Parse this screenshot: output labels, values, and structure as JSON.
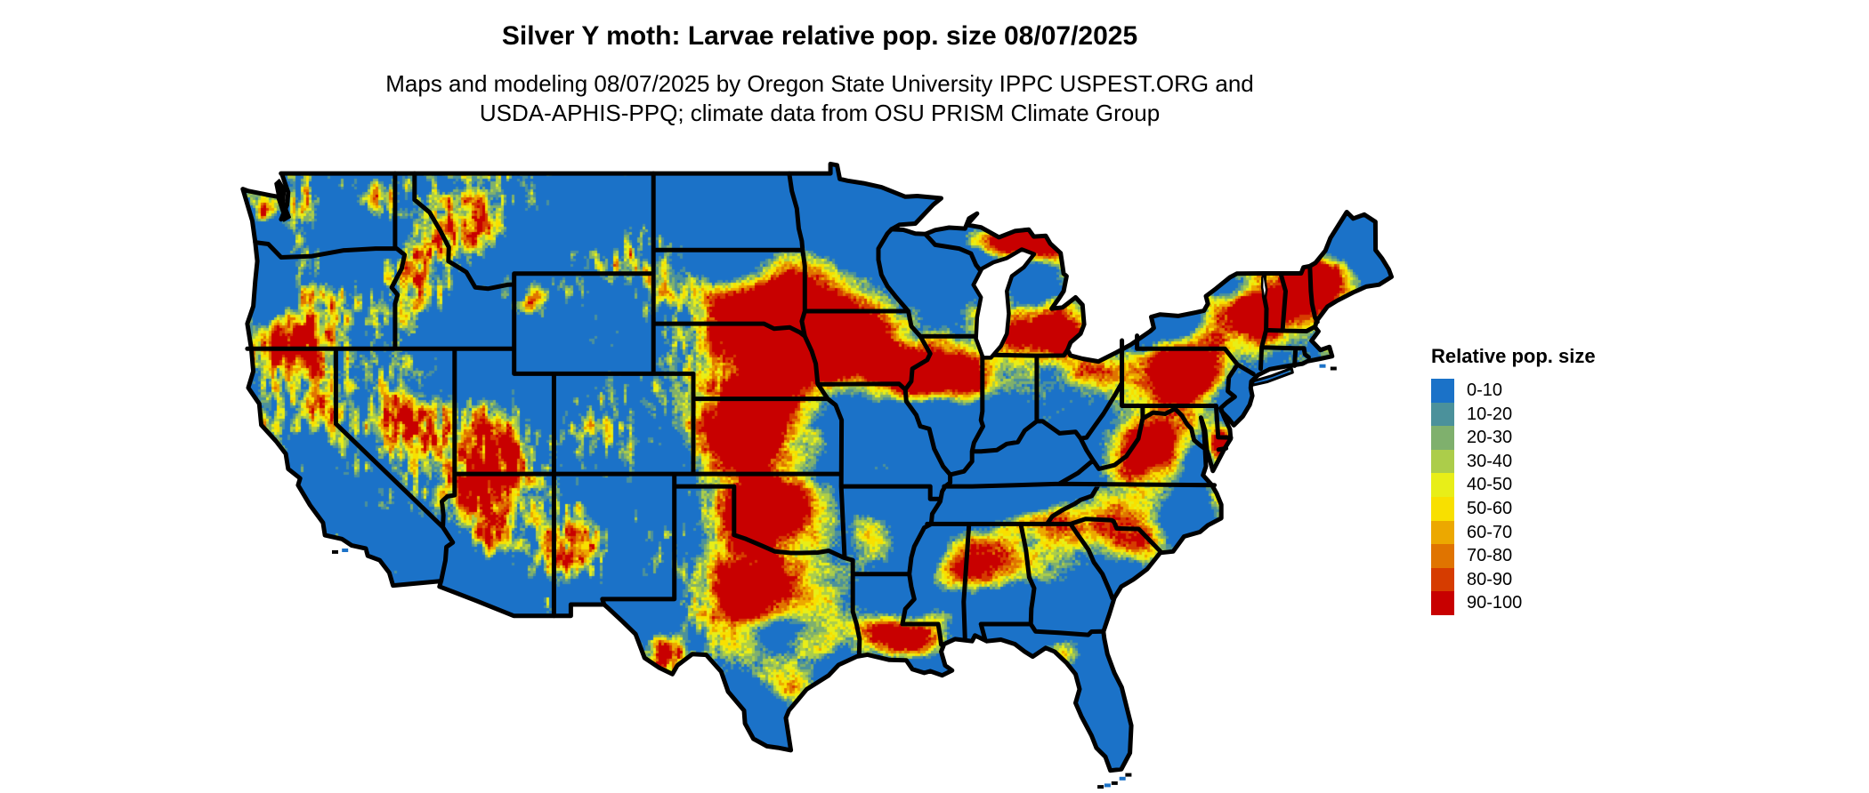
{
  "title": "Silver Y moth: Larvae relative pop. size 08/07/2025",
  "subtitle": {
    "line1": "Maps and modeling 08/07/2025 by Oregon State University IPPC USPEST.ORG and",
    "line2": "USDA-APHIS-PPQ; climate data from OSU PRISM Climate Group"
  },
  "legend": {
    "title": "Relative pop. size",
    "items": [
      {
        "label": "0-10",
        "color": "#1b72c8"
      },
      {
        "label": "10-20",
        "color": "#4b919b"
      },
      {
        "label": "20-30",
        "color": "#7fb06d"
      },
      {
        "label": "30-40",
        "color": "#accd4a"
      },
      {
        "label": "40-50",
        "color": "#e8ee18"
      },
      {
        "label": "50-60",
        "color": "#f8e000"
      },
      {
        "label": "60-70",
        "color": "#eca800"
      },
      {
        "label": "70-80",
        "color": "#e07400"
      },
      {
        "label": "80-90",
        "color": "#d63c00"
      },
      {
        "label": "90-100",
        "color": "#c80000"
      }
    ]
  },
  "map": {
    "region": "Continental United States",
    "border_color": "#000000",
    "no_data_color": "#ffffff"
  }
}
